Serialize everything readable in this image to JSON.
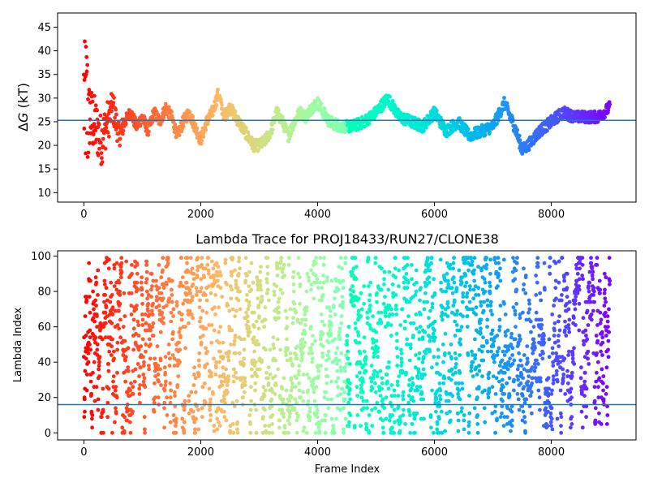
{
  "chart_data": [
    {
      "type": "scatter",
      "title": "",
      "xlabel": "",
      "ylabel": "ΔG (kT)",
      "ylabel_symbol": "Δ",
      "ylabel_var": "G",
      "ylabel_unit": " (kT)",
      "xlim": [
        -450,
        9450
      ],
      "ylim": [
        8,
        48
      ],
      "xticks": [
        0,
        2000,
        4000,
        6000,
        8000
      ],
      "yticks": [
        10,
        15,
        20,
        25,
        30,
        35,
        40,
        45
      ],
      "hline": 25.3,
      "hline_color": "#1f77b4",
      "colormap": "rainbow (reversed: early frames red, late frames purple)",
      "anchors_x": [
        0,
        100,
        200,
        300,
        400,
        500,
        600,
        700,
        800,
        900,
        1000,
        1100,
        1200,
        1300,
        1400,
        1500,
        1600,
        1700,
        1800,
        1900,
        2000,
        2100,
        2200,
        2300,
        2400,
        2500,
        2600,
        2700,
        2800,
        2900,
        3000,
        3100,
        3200,
        3300,
        3400,
        3500,
        3600,
        3700,
        3800,
        3900,
        4000,
        4200,
        4400,
        4600,
        4800,
        5000,
        5200,
        5400,
        5600,
        5800,
        6000,
        6200,
        6400,
        6600,
        6800,
        7000,
        7200,
        7400,
        7500,
        7600,
        7800,
        8000,
        8200,
        8400,
        8600,
        8800,
        9000
      ],
      "anchors_y": [
        30,
        26,
        24,
        21,
        25,
        28,
        22,
        25,
        27,
        24,
        26,
        23,
        27,
        25,
        28,
        26,
        22,
        25,
        27,
        24,
        21,
        25,
        27,
        31,
        26,
        28,
        26,
        24,
        22,
        20,
        20,
        21,
        23,
        27,
        25,
        22,
        25,
        27,
        26,
        28,
        29,
        25,
        24,
        24,
        25,
        27,
        30,
        26,
        25,
        24,
        27,
        23,
        25,
        22,
        23,
        24,
        29,
        23,
        19,
        20,
        23,
        25,
        27,
        26,
        26,
        26,
        28
      ]
    },
    {
      "type": "scatter",
      "title": "Lambda Trace for PROJ18433/RUN27/CLONE38",
      "xlabel": "Frame Index",
      "ylabel": "Lambda Index",
      "xlim": [
        -450,
        9450
      ],
      "ylim": [
        -4,
        103
      ],
      "xticks": [
        0,
        2000,
        4000,
        6000,
        8000
      ],
      "yticks": [
        0,
        20,
        40,
        60,
        80,
        100
      ],
      "hline": 16,
      "hline_color": "#1f77b4",
      "colormap": "rainbow (reversed: early frames red, late frames purple)",
      "x_range": [
        0,
        9000
      ],
      "y_range": [
        0,
        99
      ]
    }
  ]
}
